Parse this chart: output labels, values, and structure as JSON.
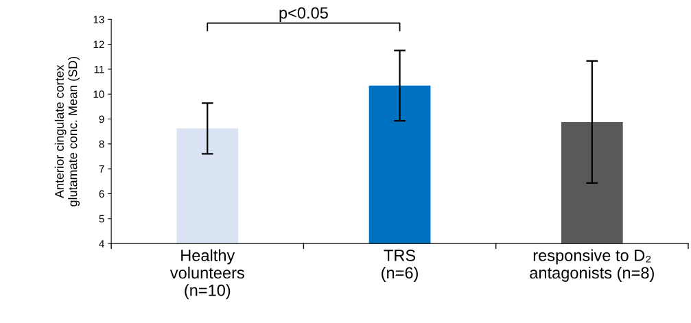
{
  "chart_data": {
    "type": "bar",
    "ylabel": "Anterior cingulate cortex\nglutamate conc. Mean (SD)",
    "categories": [
      "Healthy\nvolunteers\n(n=10)",
      "TRS\n(n=6)",
      "responsive to D₂\nantagonists (n=8)"
    ],
    "values": [
      8.62,
      10.34,
      8.88
    ],
    "errors": [
      1.02,
      1.41,
      2.45
    ],
    "colors": [
      "#dae3f3",
      "#0070c0",
      "#595959"
    ],
    "ylim": [
      4,
      13
    ],
    "yticks": [
      4,
      5,
      6,
      7,
      8,
      9,
      10,
      11,
      12,
      13
    ],
    "annotations": [
      "p<0.05"
    ],
    "grid": false,
    "legend": false
  }
}
